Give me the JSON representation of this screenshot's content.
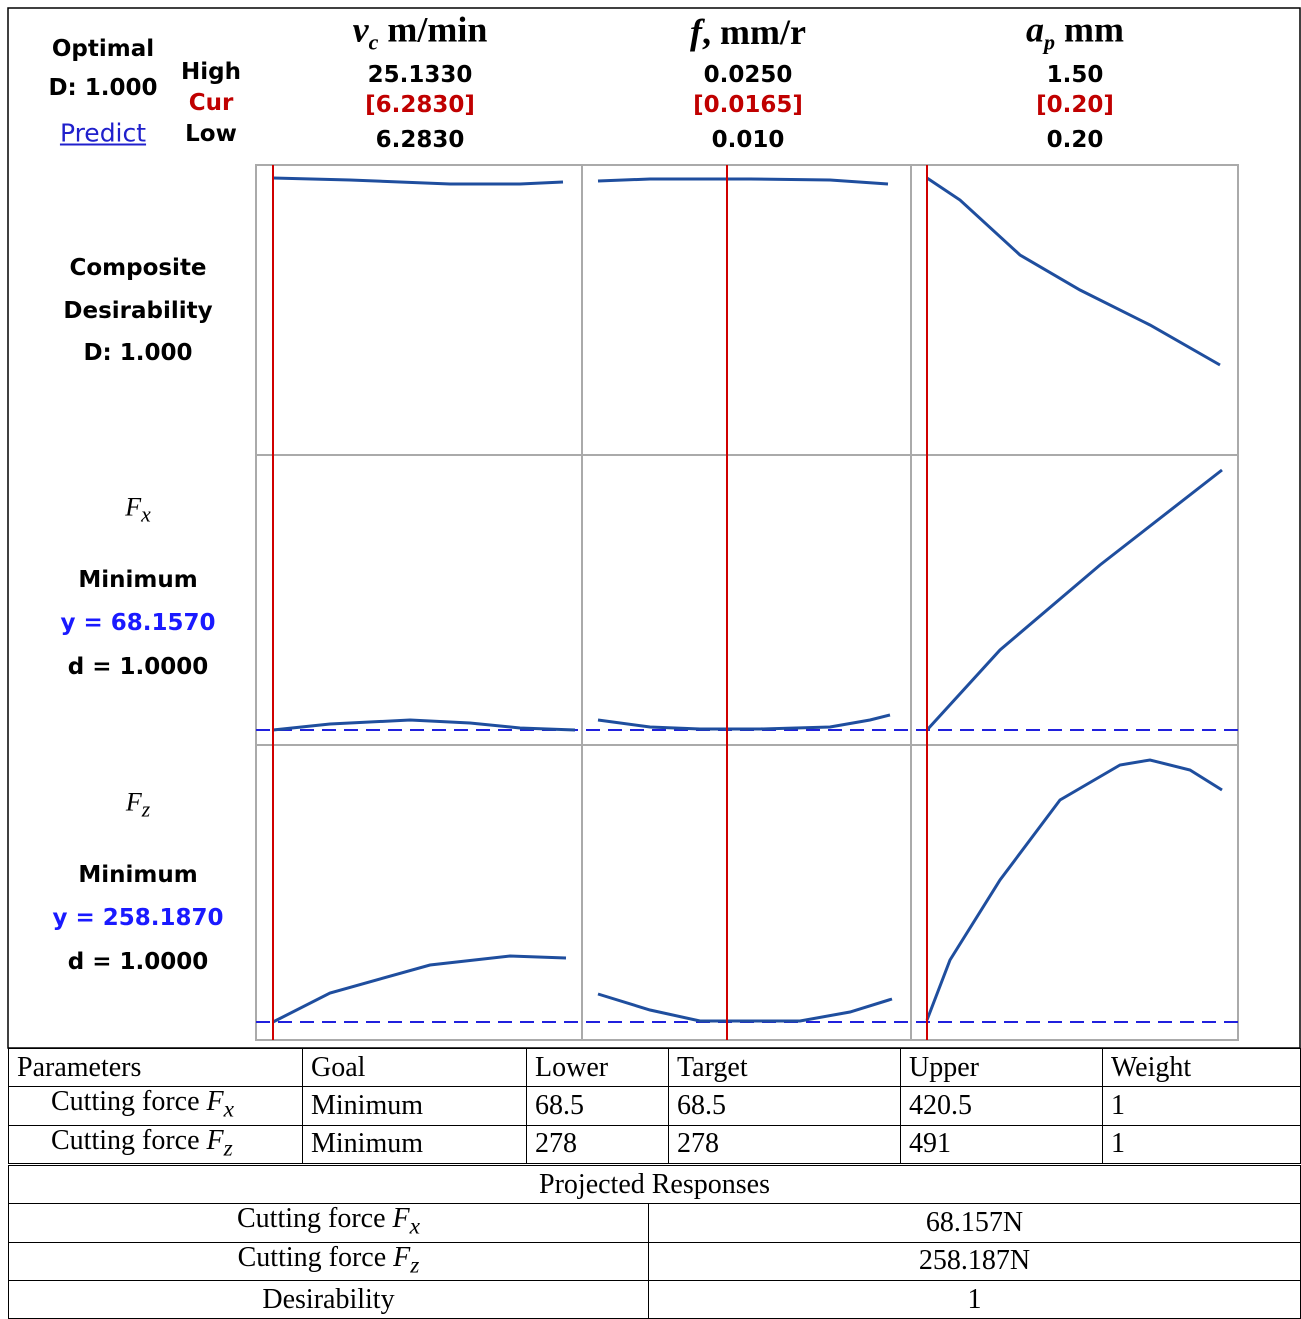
{
  "optimizer": {
    "optimal": "Optimal",
    "d": "D: 1.000",
    "predict": "Predict",
    "high": "High",
    "cur": "Cur",
    "low": "Low",
    "factors": [
      {
        "symbol": "v",
        "subscript": "c",
        "unit": " m/min",
        "high": "25.1330",
        "cur": "[6.2830]",
        "low": "6.2830"
      },
      {
        "symbol": "f",
        "unit": ", mm/r",
        "high": "0.0250",
        "cur": "[0.0165]",
        "low": "0.010"
      },
      {
        "symbol": "a",
        "subscript": "p",
        "unit": " mm",
        "high": "1.50",
        "cur": "[0.20]",
        "low": "0.20"
      }
    ],
    "rows": [
      {
        "lines": [
          "Composite",
          "Desirability",
          "D: 1.000"
        ]
      },
      {
        "symbol": "F",
        "subscript": "x",
        "goal": "Minimum",
        "y": "y = 68.1570",
        "d": "d = 1.0000"
      },
      {
        "symbol": "F",
        "subscript": "z",
        "goal": "Minimum",
        "y": "y = 258.1870",
        "d": "d = 1.0000"
      }
    ]
  },
  "table": {
    "header": [
      "Parameters",
      "Goal",
      "Lower",
      "Target",
      "Upper",
      "Weight"
    ],
    "rows": [
      [
        {
          "text": "Cutting force ",
          "symbol": "F",
          "subscript": "x"
        },
        "Minimum",
        "68.5",
        "68.5",
        "420.5",
        "1"
      ],
      [
        {
          "text": "Cutting force ",
          "symbol": "F",
          "subscript": "z"
        },
        "Minimum",
        "278",
        "278",
        "491",
        "1"
      ]
    ]
  },
  "projected": {
    "title": "Projected Responses",
    "rows": [
      [
        {
          "text": "Cutting force ",
          "symbol": "F",
          "subscript": "x"
        },
        "68.157N"
      ],
      [
        {
          "text": "Cutting force ",
          "symbol": "F",
          "subscript": "z"
        },
        "258.187N"
      ],
      [
        "Desirability",
        "1"
      ]
    ]
  }
}
